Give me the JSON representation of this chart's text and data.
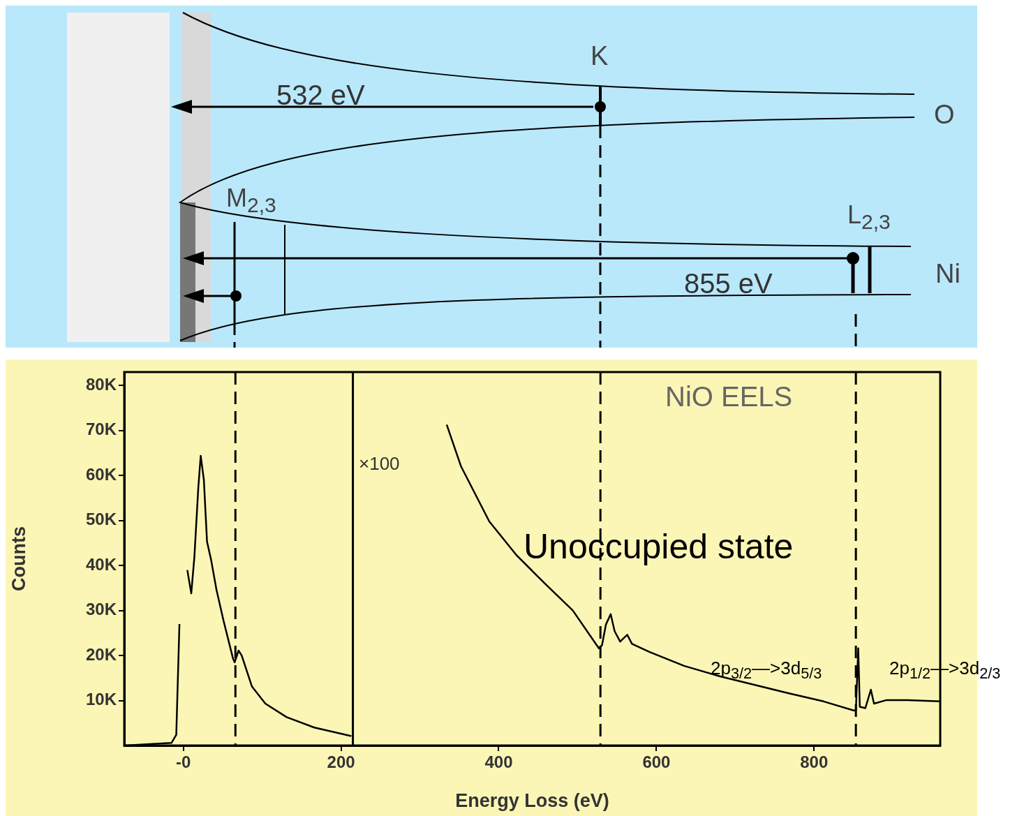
{
  "chart_data": {
    "type": "line",
    "title": "NiO EELS",
    "xlabel": "Energy Loss (eV)",
    "ylabel": "Counts",
    "xlim": [
      -75,
      960
    ],
    "xticks": [
      {
        "value": 0,
        "label": "-0"
      },
      200,
      400,
      600,
      800
    ],
    "ylim": [
      0,
      83000
    ],
    "yticks": [
      {
        "value": 10000,
        "label": "10K"
      },
      {
        "value": 20000,
        "label": "20K"
      },
      {
        "value": 30000,
        "label": "30K"
      },
      {
        "value": 40000,
        "label": "40K"
      },
      {
        "value": 50000,
        "label": "50K"
      },
      {
        "value": 60000,
        "label": "60K"
      },
      {
        "value": 70000,
        "label": "70K"
      },
      {
        "value": 80000,
        "label": "80K"
      }
    ],
    "grid": false,
    "legend": false,
    "marker": "none",
    "line_style": "solid",
    "series": [
      {
        "color": "#000000",
        "x": [
          -74,
          -15,
          -9,
          -5,
          -3,
          2,
          5,
          10,
          14,
          19,
          22,
          26,
          30,
          35,
          42,
          51,
          63,
          65,
          70,
          74,
          87,
          104,
          131,
          166,
          213
        ],
        "values": [
          0,
          600,
          2400,
          27000,
          null,
          null,
          39000,
          33800,
          42000,
          57500,
          64400,
          59000,
          45300,
          41400,
          34600,
          27700,
          19300,
          18500,
          21100,
          20000,
          13100,
          9300,
          6300,
          4000,
          2100
        ]
      },
      {
        "color": "#000000",
        "x": [
          334,
          352,
          388,
          423,
          458,
          494,
          527,
          531,
          536,
          542,
          547,
          554,
          563,
          569,
          591,
          635,
          680,
          724,
          768,
          812,
          850,
          853,
          856,
          858,
          865,
          872,
          876,
          892,
          918,
          960
        ],
        "values": [
          71300,
          62100,
          49800,
          42200,
          36100,
          30000,
          21600,
          22300,
          26900,
          29200,
          25400,
          23100,
          24600,
          22600,
          20800,
          17700,
          15400,
          13500,
          11600,
          9800,
          7800,
          7800,
          21600,
          8600,
          8300,
          12400,
          9300,
          10100,
          10100,
          9800
        ]
      }
    ],
    "ref_lines": [
      {
        "axis": "x",
        "value": 215,
        "line_style": "solid"
      },
      {
        "axis": "x",
        "value": 66,
        "line_style": "dashed"
      },
      {
        "axis": "x",
        "value": 529,
        "line_style": "dashed"
      },
      {
        "axis": "x",
        "value": 853,
        "line_style": "dashed"
      }
    ],
    "annotations": [
      "×100",
      "Unoccupied state",
      "2p$_{3/2}$—>3d$_{5/3}$",
      "2p$_{1/2}$—>3d$_{2/3}$",
      "K",
      "532 eV",
      "O",
      "M$_{2,3}$",
      "L$_{2,3}$",
      "855 eV",
      "Ni"
    ]
  }
}
